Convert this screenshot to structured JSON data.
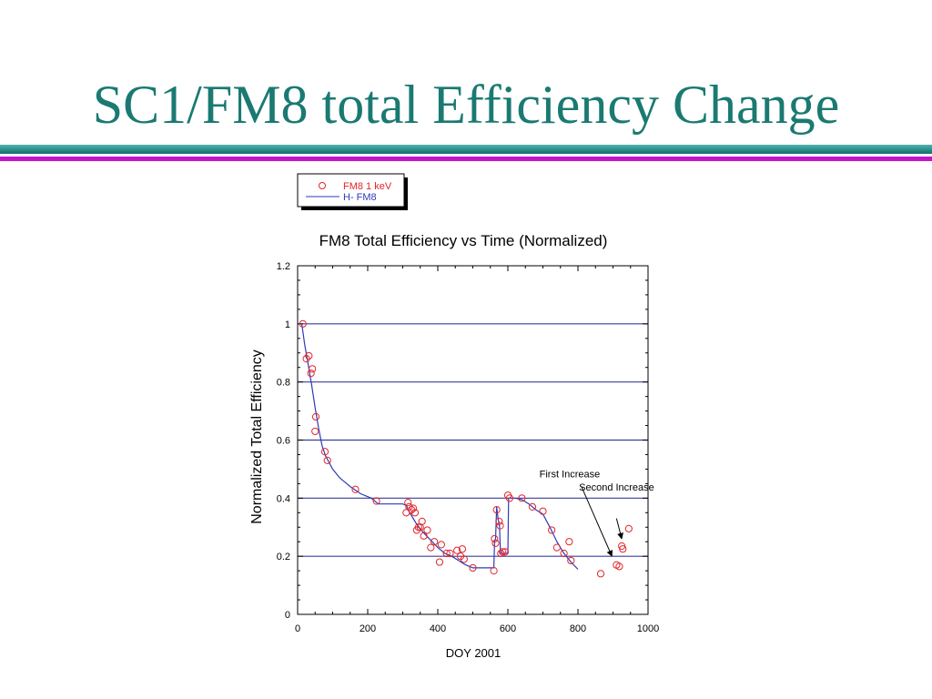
{
  "slide": {
    "title": "SC1/FM8 total Efficiency Change",
    "colors": {
      "title": "#1a7a72",
      "rule_teal": "#136d6a",
      "rule_magenta": "#c314c8"
    }
  },
  "chart_data": {
    "type": "scatter",
    "title": "FM8 Total Efficiency vs Time (Normalized)",
    "xlabel": "DOY 2001",
    "ylabel": "Normalized Total Efficiency",
    "xlim": [
      0,
      1000
    ],
    "ylim": [
      0,
      1.2
    ],
    "xticks": [
      0,
      200,
      400,
      600,
      800,
      1000
    ],
    "yticks": [
      0,
      0.2,
      0.4,
      0.6,
      0.8,
      1,
      1.2
    ],
    "xtick_labels": [
      "0",
      "200",
      "400",
      "600",
      "800",
      "1000"
    ],
    "ytick_labels": [
      "0",
      "0.2",
      "0.4",
      "0.6",
      "0.8",
      "1",
      "1.2"
    ],
    "horizontal_gridlines": [
      0.2,
      0.4,
      0.6,
      0.8,
      1.0
    ],
    "legend_position": "above chart, left",
    "series": [
      {
        "name": "FM8 1 keV",
        "kind": "points",
        "marker": "open circle",
        "color": "#e0262b",
        "points": [
          [
            15,
            1.0
          ],
          [
            25,
            0.88
          ],
          [
            32,
            0.89
          ],
          [
            38,
            0.83
          ],
          [
            42,
            0.845
          ],
          [
            50,
            0.63
          ],
          [
            52,
            0.68
          ],
          [
            78,
            0.56
          ],
          [
            85,
            0.53
          ],
          [
            165,
            0.43
          ],
          [
            225,
            0.39
          ],
          [
            310,
            0.35
          ],
          [
            315,
            0.385
          ],
          [
            318,
            0.37
          ],
          [
            325,
            0.36
          ],
          [
            330,
            0.365
          ],
          [
            335,
            0.35
          ],
          [
            340,
            0.29
          ],
          [
            345,
            0.3
          ],
          [
            350,
            0.3
          ],
          [
            355,
            0.32
          ],
          [
            360,
            0.27
          ],
          [
            370,
            0.29
          ],
          [
            380,
            0.23
          ],
          [
            390,
            0.25
          ],
          [
            405,
            0.18
          ],
          [
            410,
            0.24
          ],
          [
            425,
            0.21
          ],
          [
            435,
            0.21
          ],
          [
            455,
            0.22
          ],
          [
            465,
            0.2
          ],
          [
            470,
            0.225
          ],
          [
            475,
            0.19
          ],
          [
            500,
            0.16
          ],
          [
            560,
            0.15
          ],
          [
            562,
            0.26
          ],
          [
            565,
            0.245
          ],
          [
            568,
            0.36
          ],
          [
            575,
            0.32
          ],
          [
            578,
            0.305
          ],
          [
            580,
            0.21
          ],
          [
            585,
            0.215
          ],
          [
            592,
            0.215
          ],
          [
            600,
            0.41
          ],
          [
            605,
            0.4
          ],
          [
            640,
            0.4
          ],
          [
            670,
            0.37
          ],
          [
            700,
            0.355
          ],
          [
            725,
            0.29
          ],
          [
            740,
            0.23
          ],
          [
            760,
            0.21
          ],
          [
            775,
            0.25
          ],
          [
            780,
            0.185
          ],
          [
            865,
            0.14
          ],
          [
            910,
            0.17
          ],
          [
            918,
            0.165
          ],
          [
            925,
            0.235
          ],
          [
            928,
            0.225
          ],
          [
            945,
            0.295
          ]
        ]
      },
      {
        "name": "H- FM8",
        "kind": "line",
        "color": "#2b3bb8",
        "points": [
          [
            12,
            1.0
          ],
          [
            20,
            0.93
          ],
          [
            30,
            0.86
          ],
          [
            40,
            0.79
          ],
          [
            50,
            0.71
          ],
          [
            60,
            0.64
          ],
          [
            70,
            0.58
          ],
          [
            80,
            0.545
          ],
          [
            100,
            0.5
          ],
          [
            120,
            0.47
          ],
          [
            150,
            0.44
          ],
          [
            180,
            0.415
          ],
          [
            210,
            0.4
          ],
          [
            230,
            0.38
          ],
          [
            300,
            0.38
          ],
          [
            310,
            0.375
          ],
          [
            320,
            0.35
          ],
          [
            340,
            0.31
          ],
          [
            360,
            0.28
          ],
          [
            380,
            0.255
          ],
          [
            400,
            0.23
          ],
          [
            420,
            0.21
          ],
          [
            440,
            0.2
          ],
          [
            460,
            0.185
          ],
          [
            480,
            0.17
          ],
          [
            500,
            0.16
          ],
          [
            560,
            0.16
          ],
          [
            562,
            0.25
          ],
          [
            565,
            0.26
          ],
          [
            568,
            0.37
          ],
          [
            572,
            0.33
          ],
          [
            576,
            0.305
          ],
          [
            579,
            0.21
          ],
          [
            600,
            0.21
          ],
          [
            602,
            0.4
          ],
          [
            620,
            0.4
          ],
          [
            640,
            0.395
          ],
          [
            660,
            0.38
          ],
          [
            680,
            0.36
          ],
          [
            700,
            0.345
          ],
          [
            720,
            0.3
          ],
          [
            740,
            0.25
          ],
          [
            760,
            0.21
          ],
          [
            780,
            0.18
          ],
          [
            800,
            0.155
          ]
        ]
      }
    ],
    "annotations": [
      {
        "text": "First Increase",
        "arrow_from": [
          810,
          0.44
        ],
        "arrow_to": [
          897,
          0.2
        ]
      },
      {
        "text": "Second Increase",
        "arrow_from": [
          910,
          0.33
        ],
        "arrow_to": [
          925,
          0.26
        ]
      }
    ]
  }
}
